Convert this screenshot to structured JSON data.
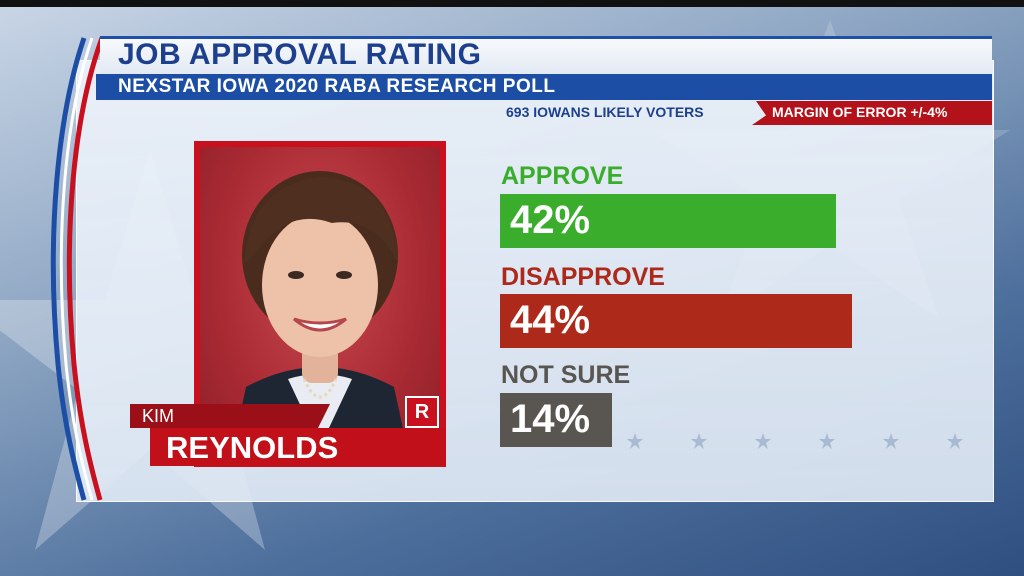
{
  "header": {
    "title": "JOB APPROVAL RATING",
    "subtitle": "NEXSTAR IOWA 2020 RABA RESEARCH POLL",
    "sample": "693 IOWANS LIKELY VOTERS",
    "margin_of_error": "MARGIN OF ERROR +/-4%"
  },
  "subject": {
    "first_name": "KIM",
    "last_name": "REYNOLDS",
    "party": "R"
  },
  "colors": {
    "approve": "#3aad2c",
    "disapprove": "#ad2a1b",
    "not_sure": "#595551",
    "header_blue": "#1d4ea6",
    "party_red": "#c8101e"
  },
  "chart_data": {
    "type": "bar",
    "orientation": "horizontal",
    "categories": [
      "APPROVE",
      "DISAPPROVE",
      "NOT SURE"
    ],
    "values": [
      42,
      44,
      14
    ],
    "value_labels": [
      "42%",
      "44%",
      "14%"
    ],
    "unit": "%",
    "title": "JOB APPROVAL RATING",
    "xlabel": "",
    "ylabel": "",
    "grid": false,
    "legend": "none"
  }
}
